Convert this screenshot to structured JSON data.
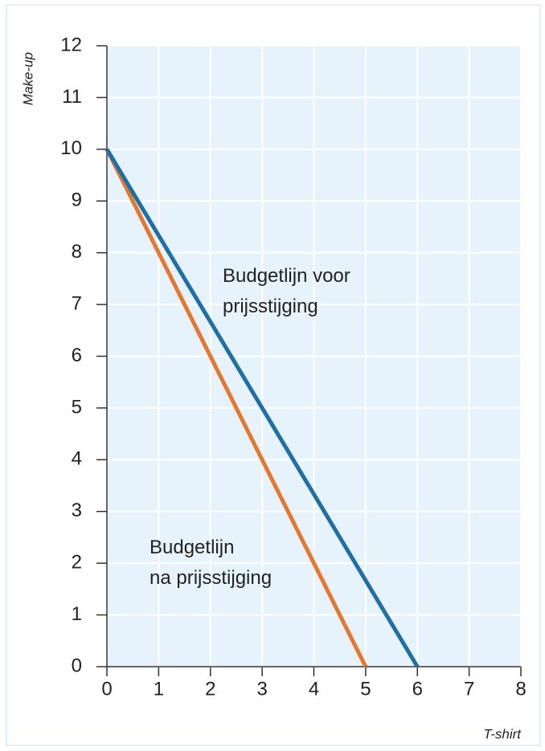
{
  "chart_data": {
    "type": "line",
    "xlabel": "T-shirt",
    "ylabel": "Make-up",
    "series": [
      {
        "color": "#1e6fa6",
        "x": [
          0,
          6
        ],
        "values": [
          10,
          0
        ]
      },
      {
        "color": "#e5772e",
        "x": [
          0,
          5
        ],
        "values": [
          10,
          0
        ]
      }
    ],
    "annotations": [
      [
        "Budgetlijn voor",
        "prijsstijging"
      ],
      [
        "Budgetlijn",
        "na prijsstijging"
      ]
    ],
    "xlim": [
      0,
      8
    ],
    "xticks": [
      0,
      1,
      2,
      3,
      4,
      5,
      6,
      7,
      8
    ],
    "ylim": [
      0,
      12
    ],
    "yticks": [
      0,
      1,
      2,
      3,
      4,
      5,
      6,
      7,
      8,
      9,
      10,
      11,
      12
    ],
    "grid": true,
    "background": "#e6f3fc"
  }
}
